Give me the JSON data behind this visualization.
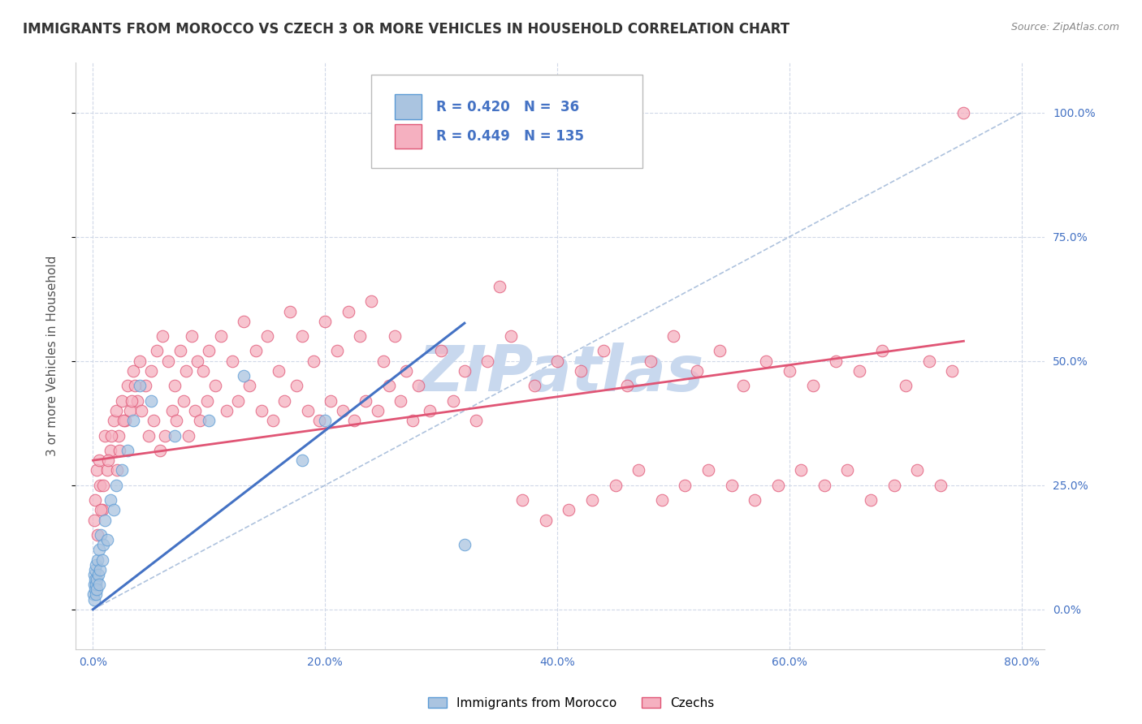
{
  "title": "IMMIGRANTS FROM MOROCCO VS CZECH 3 OR MORE VEHICLES IN HOUSEHOLD CORRELATION CHART",
  "source": "Source: ZipAtlas.com",
  "ylabel": "3 or more Vehicles in Household",
  "xlim": [
    -1.5,
    82.0
  ],
  "ylim": [
    -8.0,
    110.0
  ],
  "xticks": [
    0,
    20,
    40,
    60,
    80
  ],
  "yticks": [
    0,
    25,
    50,
    75,
    100
  ],
  "xticklabels": [
    "0.0%",
    "20.0%",
    "40.0%",
    "60.0%",
    "80.0%"
  ],
  "yticklabels": [
    "0.0%",
    "25.0%",
    "50.0%",
    "75.0%",
    "100.0%"
  ],
  "morocco_R": 0.42,
  "morocco_N": 36,
  "czech_R": 0.449,
  "czech_N": 135,
  "morocco_face_color": "#aac4e0",
  "morocco_edge_color": "#5b9bd5",
  "czech_face_color": "#f5b0c0",
  "czech_edge_color": "#e05575",
  "morocco_line_color": "#4472c4",
  "czech_line_color": "#e05575",
  "ref_line_color": "#a0b8d8",
  "grid_color": "#d0d8e8",
  "background_color": "#ffffff",
  "watermark": "ZIPatlas",
  "watermark_color": "#c8d8ee",
  "tick_color": "#4472c4",
  "title_color": "#333333",
  "ylabel_color": "#555555",
  "source_color": "#888888",
  "morocco_line_intercept": 0.0,
  "morocco_line_slope": 1.8,
  "czech_line_intercept": 30.0,
  "czech_line_slope": 0.32,
  "ref_line_x0": 0,
  "ref_line_y0": 0,
  "ref_line_x1": 80,
  "ref_line_y1": 100,
  "morocco_scatter_x": [
    0.05,
    0.08,
    0.1,
    0.12,
    0.15,
    0.18,
    0.2,
    0.22,
    0.25,
    0.28,
    0.3,
    0.35,
    0.4,
    0.45,
    0.5,
    0.55,
    0.6,
    0.7,
    0.8,
    0.9,
    1.0,
    1.2,
    1.5,
    1.8,
    2.0,
    2.5,
    3.0,
    3.5,
    4.0,
    5.0,
    7.0,
    10.0,
    13.0,
    18.0,
    20.0,
    32.0
  ],
  "morocco_scatter_y": [
    3.0,
    5.0,
    2.0,
    7.0,
    4.0,
    6.0,
    8.0,
    3.0,
    5.0,
    9.0,
    6.0,
    4.0,
    10.0,
    7.0,
    12.0,
    5.0,
    8.0,
    15.0,
    10.0,
    13.0,
    18.0,
    14.0,
    22.0,
    20.0,
    25.0,
    28.0,
    32.0,
    38.0,
    45.0,
    42.0,
    35.0,
    38.0,
    47.0,
    30.0,
    38.0,
    13.0
  ],
  "czech_scatter_x": [
    0.1,
    0.2,
    0.3,
    0.5,
    0.6,
    0.8,
    1.0,
    1.2,
    1.5,
    1.8,
    2.0,
    2.2,
    2.5,
    2.8,
    3.0,
    3.2,
    3.5,
    3.8,
    4.0,
    4.5,
    5.0,
    5.5,
    6.0,
    6.5,
    7.0,
    7.5,
    8.0,
    8.5,
    9.0,
    9.5,
    10.0,
    11.0,
    12.0,
    13.0,
    14.0,
    15.0,
    16.0,
    17.0,
    18.0,
    19.0,
    20.0,
    21.0,
    22.0,
    23.0,
    24.0,
    25.0,
    26.0,
    27.0,
    28.0,
    30.0,
    32.0,
    34.0,
    36.0,
    38.0,
    40.0,
    42.0,
    44.0,
    46.0,
    48.0,
    50.0,
    52.0,
    54.0,
    56.0,
    58.0,
    60.0,
    62.0,
    64.0,
    66.0,
    68.0,
    70.0,
    72.0,
    74.0,
    0.4,
    0.7,
    0.9,
    1.3,
    1.6,
    2.1,
    2.3,
    2.6,
    3.3,
    3.6,
    4.2,
    4.8,
    5.2,
    5.8,
    6.2,
    6.8,
    7.2,
    7.8,
    8.2,
    8.8,
    9.2,
    9.8,
    10.5,
    11.5,
    12.5,
    13.5,
    14.5,
    15.5,
    16.5,
    17.5,
    18.5,
    19.5,
    20.5,
    21.5,
    22.5,
    23.5,
    24.5,
    25.5,
    26.5,
    27.5,
    29.0,
    31.0,
    33.0,
    35.0,
    37.0,
    39.0,
    41.0,
    43.0,
    45.0,
    47.0,
    49.0,
    51.0,
    53.0,
    55.0,
    57.0,
    59.0,
    61.0,
    63.0,
    65.0,
    67.0,
    69.0,
    71.0,
    73.0,
    75.0
  ],
  "czech_scatter_y": [
    18.0,
    22.0,
    28.0,
    30.0,
    25.0,
    20.0,
    35.0,
    28.0,
    32.0,
    38.0,
    40.0,
    35.0,
    42.0,
    38.0,
    45.0,
    40.0,
    48.0,
    42.0,
    50.0,
    45.0,
    48.0,
    52.0,
    55.0,
    50.0,
    45.0,
    52.0,
    48.0,
    55.0,
    50.0,
    48.0,
    52.0,
    55.0,
    50.0,
    58.0,
    52.0,
    55.0,
    48.0,
    60.0,
    55.0,
    50.0,
    58.0,
    52.0,
    60.0,
    55.0,
    62.0,
    50.0,
    55.0,
    48.0,
    45.0,
    52.0,
    48.0,
    50.0,
    55.0,
    45.0,
    50.0,
    48.0,
    52.0,
    45.0,
    50.0,
    55.0,
    48.0,
    52.0,
    45.0,
    50.0,
    48.0,
    45.0,
    50.0,
    48.0,
    52.0,
    45.0,
    50.0,
    48.0,
    15.0,
    20.0,
    25.0,
    30.0,
    35.0,
    28.0,
    32.0,
    38.0,
    42.0,
    45.0,
    40.0,
    35.0,
    38.0,
    32.0,
    35.0,
    40.0,
    38.0,
    42.0,
    35.0,
    40.0,
    38.0,
    42.0,
    45.0,
    40.0,
    42.0,
    45.0,
    40.0,
    38.0,
    42.0,
    45.0,
    40.0,
    38.0,
    42.0,
    40.0,
    38.0,
    42.0,
    40.0,
    45.0,
    42.0,
    38.0,
    40.0,
    42.0,
    38.0,
    65.0,
    22.0,
    18.0,
    20.0,
    22.0,
    25.0,
    28.0,
    22.0,
    25.0,
    28.0,
    25.0,
    22.0,
    25.0,
    28.0,
    25.0,
    28.0,
    22.0,
    25.0,
    28.0,
    25.0,
    100.0
  ]
}
